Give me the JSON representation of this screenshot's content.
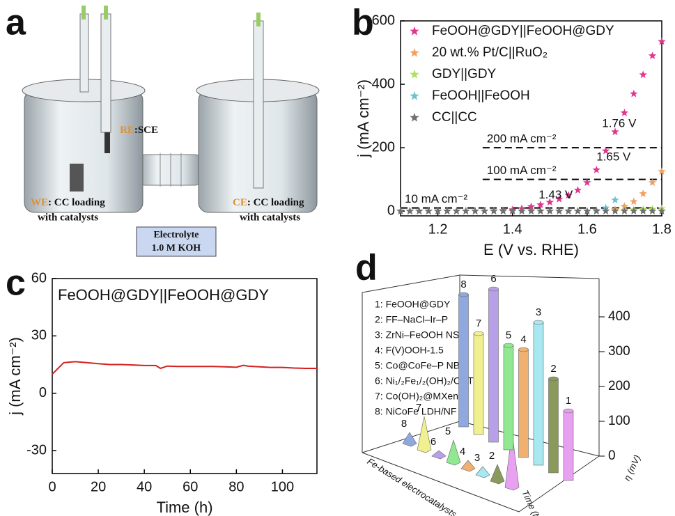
{
  "diagram": {
    "label": "a",
    "re": {
      "tag": "RE",
      "text": ":SCE"
    },
    "we": {
      "tag": "WE",
      "lines": [
        ": CC loading",
        "with catalysts"
      ]
    },
    "ce": {
      "tag": "CE",
      "lines": [
        ": CC loading",
        "with catalysts"
      ]
    },
    "electrolyte": [
      "Electrolyte",
      "1.0 M KOH"
    ]
  },
  "chart_data": [
    {
      "type": "scatter",
      "label": "b",
      "xlabel": "E (V vs. RHE)",
      "ylabel": "j (mA cm⁻²)",
      "xlim": [
        1.1,
        1.8
      ],
      "ylim": [
        -15,
        600
      ],
      "xticks": [
        1.2,
        1.4,
        1.6,
        1.8
      ],
      "yticks": [
        0,
        200,
        400,
        600
      ],
      "legend": "upper left",
      "x": [
        1.1,
        1.125,
        1.15,
        1.175,
        1.2,
        1.225,
        1.25,
        1.275,
        1.3,
        1.325,
        1.35,
        1.375,
        1.4,
        1.425,
        1.45,
        1.475,
        1.5,
        1.525,
        1.55,
        1.575,
        1.6,
        1.625,
        1.65,
        1.675,
        1.7,
        1.725,
        1.75,
        1.775,
        1.8
      ],
      "series": [
        {
          "name": "FeOOH@GDY||FeOOH@GDY",
          "color": "#e0368f",
          "values": [
            0,
            0,
            0,
            0,
            0,
            0,
            0,
            0,
            0,
            0,
            1,
            2,
            4,
            8,
            14,
            20,
            28,
            38,
            50,
            66,
            90,
            130,
            190,
            250,
            310,
            370,
            430,
            490,
            535
          ]
        },
        {
          "name": "20 wt.% Pt/C||RuO₂",
          "color": "#f0a060",
          "values": [
            0,
            0,
            0,
            0,
            0,
            0,
            0,
            0,
            0,
            0,
            0,
            0,
            0,
            0,
            0,
            0,
            0,
            0,
            0,
            0,
            0,
            0,
            1,
            5,
            15,
            30,
            55,
            90,
            125
          ]
        },
        {
          "name": "GDY||GDY",
          "color": "#b0e060",
          "values": [
            0,
            0,
            0,
            0,
            0,
            0,
            0,
            0,
            0,
            0,
            0,
            0,
            0,
            0,
            0,
            0,
            0,
            0,
            0,
            0,
            0,
            1,
            1,
            2,
            3,
            4,
            5,
            6,
            8
          ]
        },
        {
          "name": "FeOOH||FeOOH",
          "color": "#70c0d0",
          "values": [
            0,
            0,
            0,
            0,
            0,
            0,
            0,
            0,
            0,
            0,
            0,
            0,
            0,
            0,
            0,
            0,
            0,
            0,
            0,
            0,
            0,
            2,
            10,
            35,
            null,
            null,
            null,
            null,
            null
          ]
        },
        {
          "name": "CC||CC",
          "color": "#707070",
          "values": [
            0,
            0,
            0,
            0,
            0,
            0,
            0,
            0,
            0,
            0,
            0,
            0,
            0,
            0,
            0,
            0,
            0,
            0,
            0,
            0,
            0,
            0,
            0,
            0,
            0,
            0,
            0,
            0,
            0
          ]
        }
      ],
      "hlines": [
        {
          "value": 200,
          "x_from": 1.32,
          "label": "200 mA cm⁻²"
        },
        {
          "value": 100,
          "x_from": 1.32,
          "label": "100 mA cm⁻²"
        },
        {
          "value": 10,
          "x_from": 1.1,
          "label": "10 mA cm⁻²"
        }
      ],
      "annotations": [
        {
          "text": "1.43 V",
          "x": 1.47,
          "y": 50
        },
        {
          "text": "1.65 V",
          "x": 1.625,
          "y": 170
        },
        {
          "text": "1.76 V",
          "x": 1.64,
          "y": 275
        }
      ]
    },
    {
      "type": "line",
      "label": "c",
      "xlabel": "Time (h)",
      "ylabel": "j (mA cm⁻²)",
      "xlim": [
        0,
        115
      ],
      "ylim": [
        -42,
        60
      ],
      "xticks": [
        0,
        20,
        40,
        60,
        80,
        100
      ],
      "yticks": [
        -30,
        0,
        30,
        60
      ],
      "x": [
        0,
        5,
        10,
        15,
        20,
        25,
        30,
        35,
        40,
        45,
        47,
        50,
        55,
        60,
        65,
        70,
        75,
        80,
        83,
        85,
        90,
        95,
        100,
        105,
        110,
        115
      ],
      "series": [
        {
          "name": "FeOOH@GDY||FeOOH@GDY",
          "color": "#d42020",
          "values": [
            10,
            16,
            16.5,
            16,
            15.5,
            15,
            15,
            14.8,
            14.5,
            14.5,
            13,
            14.2,
            14,
            14,
            14,
            14,
            13.8,
            13.6,
            14.6,
            14.2,
            13.8,
            13.5,
            13.5,
            13.2,
            13,
            13
          ]
        }
      ]
    },
    {
      "type": "bar3d",
      "label": "d",
      "ylabel": "η (mV)",
      "y2label": "Time (h)",
      "xlabel": "Fe-based electrocatalysts",
      "ylim": [
        0,
        450
      ],
      "yticks": [
        0,
        100,
        200,
        300,
        400
      ],
      "y2lim": [
        0,
        100
      ],
      "categories": [
        "1",
        "2",
        "3",
        "4",
        "5",
        "6",
        "7",
        "8"
      ],
      "names": [
        "1: FeOOH@GDY",
        "2: FF–NaCl–Ir–P",
        "3: ZrNi–FeOOH NSs",
        "4: F(V)OOH-1.5",
        "5: Co@CoFe–P NBs",
        "6: Ni₁/₂Fe₁/₂(OH)₂/CNT",
        "7: Co(OH)₂@MXene",
        "8: NiCoFe LDH/NF"
      ],
      "colors": [
        "#e8a0f0",
        "#8a9a5b",
        "#a8e8f0",
        "#f0b070",
        "#90e890",
        "#b8a0e8",
        "#f0f090",
        "#90a8e0"
      ],
      "values": [
        200,
        270,
        410,
        310,
        300,
        440,
        290,
        380
      ],
      "time": [
        100,
        30,
        15,
        15,
        40,
        10,
        60,
        20
      ]
    }
  ]
}
